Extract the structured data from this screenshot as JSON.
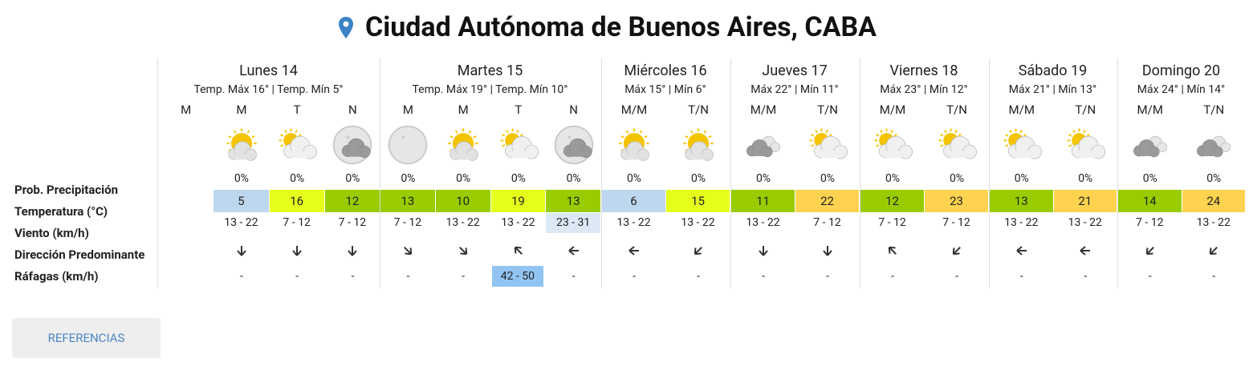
{
  "title": "Ciudad Autónoma de Buenos Aires, CABA",
  "row_labels": [
    "Prob. Precipitación",
    "Temperatura (°C)",
    "Viento (km/h)",
    "Dirección Predominante",
    "Ráfagas (km/h)"
  ],
  "button": "REFERENCIAS",
  "days": [
    {
      "name": "Lunes 14",
      "summary": "Temp. Máx 16° | Temp. Mín 5°",
      "periods": [
        {
          "label": "M"
        },
        {
          "label": "M",
          "precipitation": "0%",
          "temperature": 5,
          "wind": "13 - 22",
          "gusts": "-"
        },
        {
          "label": "T",
          "precipitation": "0%",
          "temperature": 16,
          "wind": "7 - 12",
          "gusts": "-"
        },
        {
          "label": "N",
          "precipitation": "0%",
          "temperature": 12,
          "wind": "7 - 12",
          "gusts": "-"
        }
      ]
    },
    {
      "name": "Martes 15",
      "summary": "Temp. Máx 19° | Temp. Mín 10°",
      "periods": [
        {
          "label": "M",
          "precipitation": "0%",
          "temperature": 13,
          "wind": "7 - 12",
          "gusts": "-"
        },
        {
          "label": "M",
          "precipitation": "0%",
          "temperature": 10,
          "wind": "13 - 22",
          "gusts": "-"
        },
        {
          "label": "T",
          "precipitation": "0%",
          "temperature": 19,
          "wind": "13 - 22",
          "gusts": "42 - 50"
        },
        {
          "label": "N",
          "precipitation": "0%",
          "temperature": 13,
          "wind": "23 - 31",
          "gusts": "-"
        }
      ]
    },
    {
      "name": "Miércoles 16",
      "summary": "Máx 15° | Mín 6°",
      "periods": [
        {
          "label": "M/M",
          "precipitation": "0%",
          "temperature": 6,
          "wind": "13 - 22",
          "gusts": "-"
        },
        {
          "label": "T/N",
          "precipitation": "0%",
          "temperature": 15,
          "wind": "13 - 22",
          "gusts": "-"
        }
      ]
    },
    {
      "name": "Jueves 17",
      "summary": "Máx 22° | Mín 11°",
      "periods": [
        {
          "label": "M/M",
          "precipitation": "0%",
          "temperature": 11,
          "wind": "13 - 22",
          "gusts": "-"
        },
        {
          "label": "T/N",
          "precipitation": "0%",
          "temperature": 22,
          "wind": "7 - 12",
          "gusts": "-"
        }
      ]
    },
    {
      "name": "Viernes 18",
      "summary": "Máx 23° | Mín 12°",
      "periods": [
        {
          "label": "M/M",
          "precipitation": "0%",
          "temperature": 12,
          "wind": "7 - 12",
          "gusts": "-"
        },
        {
          "label": "T/N",
          "precipitation": "0%",
          "temperature": 23,
          "wind": "7 - 12",
          "gusts": "-"
        }
      ]
    },
    {
      "name": "Sábado 19",
      "summary": "Máx 21° | Mín 13°",
      "periods": [
        {
          "label": "M/M",
          "precipitation": "0%",
          "temperature": 13,
          "wind": "13 - 22",
          "gusts": "-"
        },
        {
          "label": "T/N",
          "precipitation": "0%",
          "temperature": 21,
          "wind": "13 - 22",
          "gusts": "-"
        }
      ]
    },
    {
      "name": "Domingo 20",
      "summary": "Máx 24° | Mín 14°",
      "periods": [
        {
          "label": "M/M",
          "precipitation": "0%",
          "temperature": 14,
          "wind": "7 - 12",
          "gusts": "-"
        },
        {
          "label": "T/N",
          "precipitation": "0%",
          "temperature": 24,
          "wind": "13 - 22",
          "gusts": "-"
        }
      ]
    }
  ]
}
